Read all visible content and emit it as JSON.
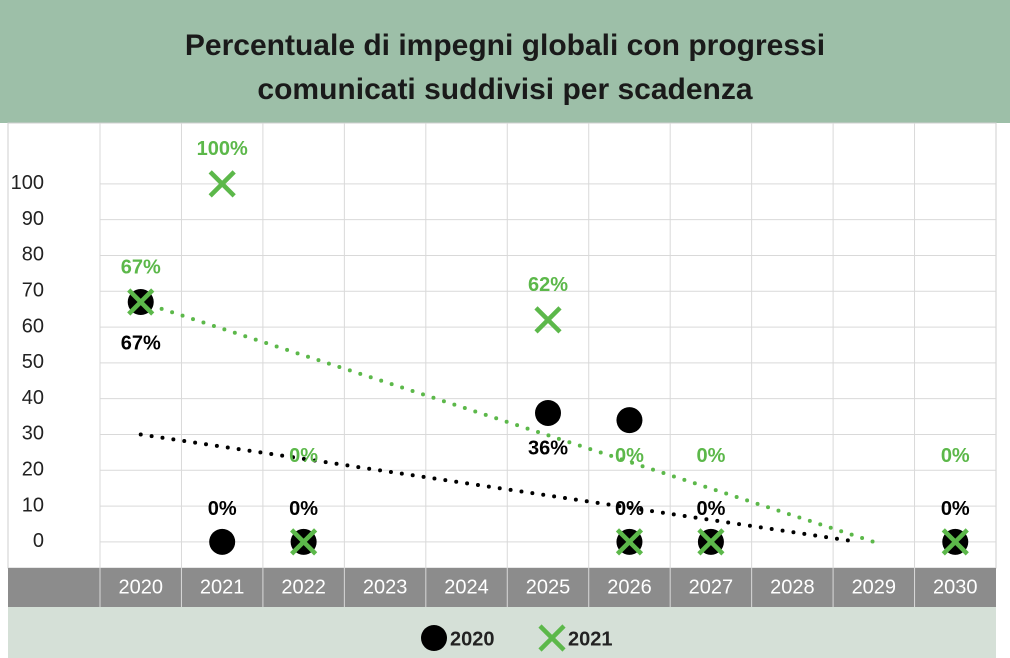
{
  "chart_data": {
    "type": "scatter",
    "title": "Percentuale di impegni globali con progressi comunicati suddivisi per scadenza",
    "xlim": [
      2019.5,
      2030.5
    ],
    "xticks": [
      2020,
      2021,
      2022,
      2023,
      2024,
      2025,
      2026,
      2027,
      2028,
      2029,
      2030
    ],
    "ylim": [
      -7.3,
      117
    ],
    "yticks": [
      0,
      10,
      20,
      30,
      40,
      50,
      60,
      70,
      80,
      90,
      100
    ],
    "grid": true,
    "series": [
      {
        "name": "2020",
        "color": "#000000",
        "marker": "circle",
        "x": [
          2020,
          2021,
          2022,
          2025,
          2026,
          2026,
          2027,
          2030
        ],
        "values": [
          67,
          0,
          0,
          36,
          34,
          0,
          0,
          0
        ],
        "value_labels": [
          "67%",
          "0%",
          "0%",
          "36%",
          null,
          "0%",
          "0%",
          "0%"
        ],
        "trend": {
          "x": [
            2020,
            2028.8
          ],
          "values": [
            30,
            0
          ]
        }
      },
      {
        "name": "2021",
        "color": "#5cb84a",
        "marker": "x",
        "x": [
          2020,
          2021,
          2022,
          2025,
          2026,
          2027,
          2030
        ],
        "values": [
          67,
          100,
          0,
          62,
          0,
          0,
          0
        ],
        "value_labels": [
          "67%",
          "100%",
          "0%",
          "62%",
          "0%",
          "0%",
          "0%"
        ],
        "trend": {
          "x": [
            2020,
            2029
          ],
          "values": [
            67,
            0
          ]
        }
      }
    ]
  }
}
